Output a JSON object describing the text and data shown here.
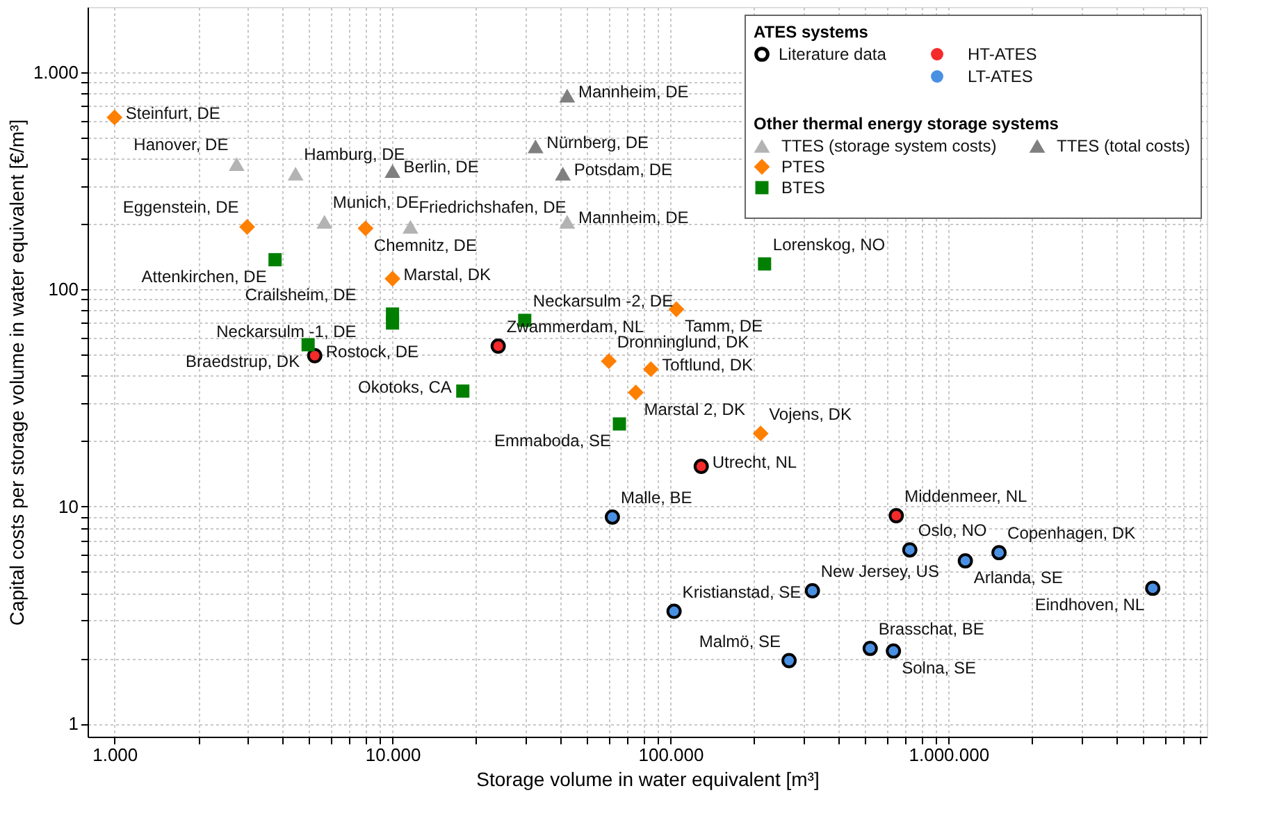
{
  "chart_data": {
    "type": "scatter",
    "xlabel": "Storage volume in water equivalent [m³]",
    "ylabel": "Capital costs per storage volume in water equivalent [€/m³]",
    "log": "xy",
    "grid": true,
    "legend": "top right",
    "legend_title": "ATES systems",
    "xlim": [
      800,
      8500000
    ],
    "ylim": [
      0.87,
      2000
    ],
    "xticks": [
      {
        "value": 1000,
        "label": "1.000"
      },
      {
        "value": 2000,
        "label": null
      },
      {
        "value": 3000,
        "label": null
      },
      {
        "value": 4000,
        "label": null
      },
      {
        "value": 5000,
        "label": null
      },
      {
        "value": 6000,
        "label": null
      },
      {
        "value": 7000,
        "label": null
      },
      {
        "value": 8000,
        "label": null
      },
      {
        "value": 9000,
        "label": null
      },
      {
        "value": 10000,
        "label": "10.000"
      },
      {
        "value": 20000,
        "label": null
      },
      {
        "value": 30000,
        "label": null
      },
      {
        "value": 40000,
        "label": null
      },
      {
        "value": 50000,
        "label": null
      },
      {
        "value": 60000,
        "label": null
      },
      {
        "value": 70000,
        "label": null
      },
      {
        "value": 80000,
        "label": null
      },
      {
        "value": 90000,
        "label": null
      },
      {
        "value": 100000,
        "label": "100.000"
      },
      {
        "value": 200000,
        "label": null
      },
      {
        "value": 300000,
        "label": null
      },
      {
        "value": 400000,
        "label": null
      },
      {
        "value": 500000,
        "label": null
      },
      {
        "value": 600000,
        "label": null
      },
      {
        "value": 700000,
        "label": null
      },
      {
        "value": 800000,
        "label": null
      },
      {
        "value": 900000,
        "label": null
      },
      {
        "value": 1000000,
        "label": "1.000.000"
      },
      {
        "value": 2000000,
        "label": null
      },
      {
        "value": 3000000,
        "label": null
      },
      {
        "value": 4000000,
        "label": null
      },
      {
        "value": 5000000,
        "label": null
      },
      {
        "value": 6000000,
        "label": null
      },
      {
        "value": 7000000,
        "label": null
      },
      {
        "value": 8000000,
        "label": null
      }
    ],
    "yticks": [
      1,
      {
        "value": 2,
        "label": null
      },
      {
        "value": 3,
        "label": null
      },
      {
        "value": 4,
        "label": null
      },
      {
        "value": 5,
        "label": null
      },
      {
        "value": 6,
        "label": null
      },
      {
        "value": 7,
        "label": null
      },
      {
        "value": 8,
        "label": null
      },
      {
        "value": 9,
        "label": null
      },
      10,
      {
        "value": 20,
        "label": null
      },
      {
        "value": 30,
        "label": null
      },
      {
        "value": 40,
        "label": null
      },
      {
        "value": 50,
        "label": null
      },
      {
        "value": 60,
        "label": null
      },
      {
        "value": 70,
        "label": null
      },
      {
        "value": 80,
        "label": null
      },
      {
        "value": 90,
        "label": null
      },
      100,
      {
        "value": 200,
        "label": null
      },
      {
        "value": 300,
        "label": null
      },
      {
        "value": 400,
        "label": null
      },
      {
        "value": 500,
        "label": null
      },
      {
        "value": 600,
        "label": null
      },
      {
        "value": 700,
        "label": null
      },
      {
        "value": 800,
        "label": null
      },
      {
        "value": 900,
        "label": null
      },
      {
        "value": 1000,
        "label": "1.000"
      }
    ],
    "series": [
      {
        "name": "HT-ATES",
        "color": "#f52a2a",
        "marker": "circle",
        "x": [
          5250,
          24000,
          129000,
          649000
        ],
        "values": [
          49.5,
          54.8,
          15.3,
          9.07
        ]
      },
      {
        "name": "LT-ATES",
        "color": "#4a90e2",
        "marker": "circle",
        "x": [
          61800,
          103000,
          324000,
          267000,
          523000,
          634000,
          726000,
          1150000,
          1520000,
          5430000
        ],
        "values": [
          8.94,
          3.29,
          4.09,
          1.95,
          2.22,
          2.16,
          6.31,
          5.62,
          6.13,
          4.2
        ]
      },
      {
        "name": "TTES (storage system costs)",
        "color": "#b3b3b3",
        "marker": "triangle",
        "x": [
          2750,
          4480,
          5690,
          11600,
          42500
        ],
        "values": [
          378,
          341,
          205,
          194,
          205
        ]
      },
      {
        "name": "TTES (total costs)",
        "color": "#7f7f7f",
        "marker": "triangle",
        "x": [
          10000,
          42500,
          32700,
          41000
        ],
        "values": [
          351,
          780,
          456,
          341
        ]
      },
      {
        "name": "PTES",
        "color": "#ff7f00",
        "marker": "diamond",
        "x": [
          1000,
          3000,
          8000,
          10000,
          105000,
          60000,
          85000,
          75000,
          211000
        ],
        "values": [
          620,
          194,
          191,
          112,
          81,
          46.7,
          42.9,
          33.5,
          21.7
        ]
      },
      {
        "name": "BTES",
        "color": "#007f00",
        "marker": "square",
        "x": [
          3780,
          10000,
          10000,
          4970,
          17900,
          29900,
          65500,
          218000
        ],
        "values": [
          137,
          77,
          70,
          55.6,
          34,
          72,
          24,
          131
        ]
      }
    ],
    "annotations": [
      {
        "text": "Steinfurt, DE",
        "x": 1000,
        "y": 620
      },
      {
        "text": "Hanover, DE",
        "x": 2750,
        "y": 378
      },
      {
        "text": "Hamburg, DE",
        "x": 4480,
        "y": 341
      },
      {
        "text": "Berlin, DE",
        "x": 10000,
        "y": 351
      },
      {
        "text": "Munich, DE",
        "x": 5690,
        "y": 205
      },
      {
        "text": "Friedrichshafen, DE",
        "x": 11600,
        "y": 194
      },
      {
        "text": "Eggenstein, DE",
        "x": 3000,
        "y": 194
      },
      {
        "text": "Chemnitz, DE",
        "x": 8000,
        "y": 191
      },
      {
        "text": "Marstal, DK",
        "x": 10000,
        "y": 112
      },
      {
        "text": "Attenkirchen, DE",
        "x": 3780,
        "y": 137
      },
      {
        "text": "Crailsheim, DE",
        "x": 10000,
        "y": 77
      },
      {
        "text": "Neckarsulm -1, DE",
        "x": 10000,
        "y": 70
      },
      {
        "text": "Braedstrup, DK",
        "x": 4970,
        "y": 55.6
      },
      {
        "text": "Rostock, DE",
        "x": 5250,
        "y": 49.5
      },
      {
        "text": "Mannheim, DE",
        "x": 42500,
        "y": 780
      },
      {
        "text": "Nürnberg, DE",
        "x": 32700,
        "y": 456
      },
      {
        "text": "Potsdam, DE",
        "x": 41000,
        "y": 341
      },
      {
        "text": "Mannheim, DE",
        "x": 42500,
        "y": 205
      },
      {
        "text": "Neckarsulm -2, DE",
        "x": 29900,
        "y": 72
      },
      {
        "text": "Zwammerdam, NL",
        "x": 24000,
        "y": 54.8
      },
      {
        "text": "Okotoks, CA",
        "x": 17900,
        "y": 34
      },
      {
        "text": "Lorenskog, NO",
        "x": 218000,
        "y": 131
      },
      {
        "text": "Tamm, DE",
        "x": 105000,
        "y": 81
      },
      {
        "text": "Dronninglund, DK",
        "x": 60000,
        "y": 46.7
      },
      {
        "text": "Toftlund, DK",
        "x": 85000,
        "y": 42.9
      },
      {
        "text": "Marstal 2, DK",
        "x": 75000,
        "y": 33.5
      },
      {
        "text": "Emmaboda, SE",
        "x": 65500,
        "y": 24
      },
      {
        "text": "Vojens, DK",
        "x": 211000,
        "y": 21.7
      },
      {
        "text": "Utrecht, NL",
        "x": 129000,
        "y": 15.3
      },
      {
        "text": "Malle, BE",
        "x": 61800,
        "y": 8.94
      },
      {
        "text": "Middenmeer, NL",
        "x": 649000,
        "y": 9.07
      },
      {
        "text": "Oslo, NO",
        "x": 726000,
        "y": 6.31
      },
      {
        "text": "Copenhagen, DK",
        "x": 1520000,
        "y": 6.13
      },
      {
        "text": "Arlanda, SE",
        "x": 1150000,
        "y": 5.62
      },
      {
        "text": "New Jersey, US",
        "x": 324000,
        "y": 4.09
      },
      {
        "text": "Kristianstad, SE",
        "x": 103000,
        "y": 3.29
      },
      {
        "text": "Eindhoven, NL",
        "x": 5430000,
        "y": 4.2
      },
      {
        "text": "Malmö, SE",
        "x": 267000,
        "y": 1.95
      },
      {
        "text": "Brasschat, BE",
        "x": 523000,
        "y": 2.22
      },
      {
        "text": "Solna, SE",
        "x": 634000,
        "y": 2.16
      },
      "Literature data",
      "Other thermal energy storage systems"
    ]
  }
}
